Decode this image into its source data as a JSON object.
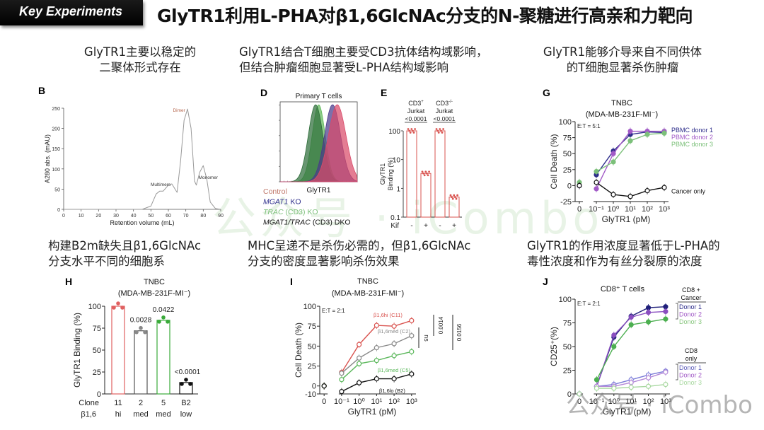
{
  "header": {
    "badge": "Key Experiments",
    "title": "GlyTR1利用L-PHA对β1,6GlcNAc分支的N-聚糖进行高亲和力靶向"
  },
  "captions": {
    "top_left": [
      "GlyTR1主要以稳定的",
      "二聚体形式存在"
    ],
    "top_mid": [
      "GlyTR1结合T细胞主要受CD3抗体结构域影响，",
      "但结合肿瘤细胞显著受L-PHA结构域影响"
    ],
    "top_right": [
      "GlyTR1能够介导来自不同供体",
      "的T细胞显著杀伤肿瘤"
    ],
    "bot_left": [
      "构建B2m缺失且β1,6GlcNAc",
      "分支水平不同的细胞系"
    ],
    "bot_mid": [
      "MHC呈递不是杀伤必需的，但β1,6GlcNAc",
      "分支的密度显著影响杀伤效果"
    ],
    "bot_right": [
      "GlyTR1的作用浓度显著低于L-PHA的",
      "毒性浓度和作为有丝分裂原的浓度"
    ]
  },
  "watermark": {
    "center": "公众号 · iCombo",
    "corner": "公众号 · iCombo"
  },
  "chart_data": [
    {
      "panel": "B",
      "type": "line",
      "title": "",
      "xlabel": "Retention volume (mL)",
      "ylabel": "A280 abs. (mAU)",
      "xlim": [
        0,
        90
      ],
      "ylim": [
        0,
        250
      ],
      "xticks": [
        0,
        10,
        20,
        30,
        40,
        50,
        60,
        70,
        80,
        90
      ],
      "yticks": [
        0,
        50,
        100,
        150,
        200,
        250
      ],
      "x": [
        0,
        45,
        50,
        53,
        55,
        57,
        60,
        62,
        65,
        67,
        69,
        71,
        73,
        75,
        76,
        78,
        80,
        82,
        84,
        87,
        90
      ],
      "values": [
        0,
        0,
        8,
        38,
        45,
        45,
        60,
        63,
        42,
        120,
        220,
        248,
        200,
        70,
        60,
        92,
        108,
        75,
        18,
        2,
        0
      ],
      "annotations": [
        {
          "text": "Dimer",
          "x": 71,
          "y": 250,
          "color": "#b5654c"
        },
        {
          "text": "Monomer",
          "x": 80,
          "y": 108
        },
        {
          "text": "Multimers",
          "x": 58,
          "y": 80
        }
      ]
    },
    {
      "panel": "D",
      "type": "area",
      "title": "Primary T cells",
      "xlabel": "GlyTR1",
      "legend": [
        {
          "label": "Control",
          "color": "#c0786a",
          "italic": false
        },
        {
          "label_italic": "MGAT1",
          "label": " KO",
          "color": "#2c2c8a"
        },
        {
          "label_italic": "TRAC",
          "label": " (CD3) KO",
          "color": "#7cc07a"
        },
        {
          "label_italic": "MGAT1/TRAC",
          "label": " (CD3) DKO",
          "color": "#111111"
        }
      ],
      "series": [
        {
          "name": "TRAC (CD3) KO",
          "peak_x_frac": 0.5,
          "color": "#5fb85a"
        },
        {
          "name": "MGAT1/TRAC (CD3) DKO",
          "peak_x_frac": 0.46,
          "color": "#2e6e3a"
        },
        {
          "name": "MGAT1 KO",
          "peak_x_frac": 0.68,
          "color": "#4a3a8a"
        },
        {
          "name": "Control",
          "peak_x_frac": 0.74,
          "color": "#d94b6a"
        }
      ]
    },
    {
      "panel": "E",
      "type": "bar",
      "ylabel": "GlyTR1 Binding (%)",
      "yscale": "log",
      "ylim": [
        0.1,
        100
      ],
      "yticks": [
        "0.1",
        "1",
        "10",
        "100"
      ],
      "groups": [
        "CD3+ Jurkat",
        "CD3-/- Jurkat"
      ],
      "group_labels": [
        {
          "main": "CD3",
          "sup": "+",
          "sub": "Jurkat",
          "p": "<0.0001"
        },
        {
          "main": "CD3",
          "sup": "-/-",
          "sub": "Jurkat",
          "p": "<0.0001"
        }
      ],
      "row_label": "Kif",
      "categories": [
        "-",
        "+",
        "-",
        "+"
      ],
      "values": [
        100,
        3.3,
        100,
        0.5
      ],
      "color": "#d9534f"
    },
    {
      "panel": "G",
      "type": "line",
      "title": "TNBC",
      "subtitle": "(MDA-MB-231F-MI⁻)",
      "annotation": "E:T = 5:1",
      "xlabel": "GlyTR1 (pM)",
      "ylabel": "Cell Death (%)",
      "xticks": [
        "0",
        "10⁻¹",
        "10⁰",
        "10¹",
        "10²",
        "10³"
      ],
      "yticks": [
        -25,
        0,
        25,
        50,
        75,
        100
      ],
      "ylim": [
        -25,
        100
      ],
      "x": [
        0,
        0.1,
        1,
        10,
        100,
        1000
      ],
      "series": [
        {
          "name": "PBMC donor 1",
          "color": "#2c2c8a",
          "values": [
            0,
            17,
            54,
            80,
            84,
            83
          ]
        },
        {
          "name": "PBMC donor 2",
          "color": "#a25bc7",
          "values": [
            0,
            -5,
            50,
            85,
            85,
            85
          ]
        },
        {
          "name": "PBMC donor 3",
          "color": "#7cc07a",
          "values": [
            5,
            22,
            37,
            70,
            80,
            82
          ]
        },
        {
          "name": "Cancer only",
          "color": "#111111",
          "values": [
            0,
            5,
            -14,
            -17,
            -8,
            -3
          ]
        }
      ]
    },
    {
      "panel": "H",
      "type": "bar",
      "title": "TNBC",
      "subtitle": "(MDA-MB-231F-MI⁻)",
      "ylabel": "GlyTR1 Binding (%)",
      "ylim": [
        0,
        100
      ],
      "yticks": [
        0,
        25,
        50,
        75,
        100
      ],
      "row_labels": [
        "Clone",
        "β1,6"
      ],
      "categories": [
        "11",
        "2",
        "5",
        "B2"
      ],
      "sub_categories": [
        "hi",
        "med",
        "med",
        "low"
      ],
      "values": [
        100,
        72,
        84,
        13
      ],
      "pvalues": [
        "",
        "0.0028",
        "0.0422",
        "<0.0001"
      ],
      "colors": [
        "#e06060",
        "#888888",
        "#3aaa3a",
        "#111111"
      ]
    },
    {
      "panel": "I",
      "type": "line",
      "title": "TNBC",
      "subtitle": "(MDA-MB-231F-MI⁻)",
      "annotation": "E:T = 2:1",
      "xlabel": "GlyTR1 (pM)",
      "ylabel": "Cell Death (%)",
      "xticks": [
        "0",
        "10⁻¹",
        "10⁰",
        "10¹",
        "10²",
        "10³"
      ],
      "yticks": [
        -10,
        0,
        25,
        50,
        75,
        100
      ],
      "ylim": [
        -10,
        100
      ],
      "x": [
        0,
        0.1,
        1,
        10,
        100,
        1000
      ],
      "series": [
        {
          "name": "β1,6hi (C11)",
          "color": "#d9534f",
          "values": [
            0,
            17,
            52,
            76,
            75,
            82
          ]
        },
        {
          "name": "β1,6med (C2)",
          "color": "#888888",
          "values": [
            0,
            16,
            35,
            48,
            53,
            63
          ]
        },
        {
          "name": "β1,6med (C5)",
          "color": "#5cb85c",
          "values": [
            0,
            8,
            28,
            32,
            38,
            43
          ]
        },
        {
          "name": "β1,6lo (B2)",
          "color": "#111111",
          "values": [
            0,
            -7,
            4,
            9,
            9,
            15
          ]
        }
      ],
      "significance": [
        "ns",
        "0.0014",
        "0.0156"
      ]
    },
    {
      "panel": "J",
      "type": "line",
      "title": "CD8⁺ T cells",
      "annotation": "E:T = 2:1",
      "xlabel": "GlyTR1 (pM)",
      "ylabel": "CD25⁺(%)",
      "xticks": [
        "0",
        "10⁻¹",
        "10⁰",
        "10¹",
        "10²",
        "10³"
      ],
      "yticks": [
        0,
        25,
        50,
        75,
        100
      ],
      "ylim": [
        0,
        100
      ],
      "x": [
        0,
        0.1,
        1,
        10,
        100,
        1000
      ],
      "legend_groups": [
        {
          "title": [
            "CD8 +",
            "Cancer"
          ],
          "items": [
            "Donor 1",
            "Donor 2",
            "Donor 3"
          ]
        },
        {
          "title": [
            "CD8",
            "only"
          ],
          "items": [
            "Donor 1",
            "Donor 2",
            "Donor 3"
          ]
        }
      ],
      "series": [
        {
          "name": "CD8+Cancer Donor 1",
          "color": "#1f1f7a",
          "values": [
            0,
            8,
            60,
            82,
            91,
            92
          ]
        },
        {
          "name": "CD8+Cancer Donor 2",
          "color": "#8a4fc0",
          "values": [
            0,
            8,
            62,
            81,
            86,
            87
          ]
        },
        {
          "name": "CD8+Cancer Donor 3",
          "color": "#4caf50",
          "values": [
            0,
            15,
            50,
            73,
            76,
            79
          ]
        },
        {
          "name": "CD8 only Donor 1",
          "color": "#7b7bd8",
          "values": [
            0,
            8,
            10,
            15,
            20,
            24
          ]
        },
        {
          "name": "CD8 only Donor 2",
          "color": "#b58ad8",
          "values": [
            0,
            8,
            8,
            12,
            17,
            23
          ]
        },
        {
          "name": "CD8 only Donor 3",
          "color": "#a8d8a0",
          "values": [
            0,
            6,
            6,
            7,
            8,
            10
          ]
        }
      ]
    }
  ]
}
